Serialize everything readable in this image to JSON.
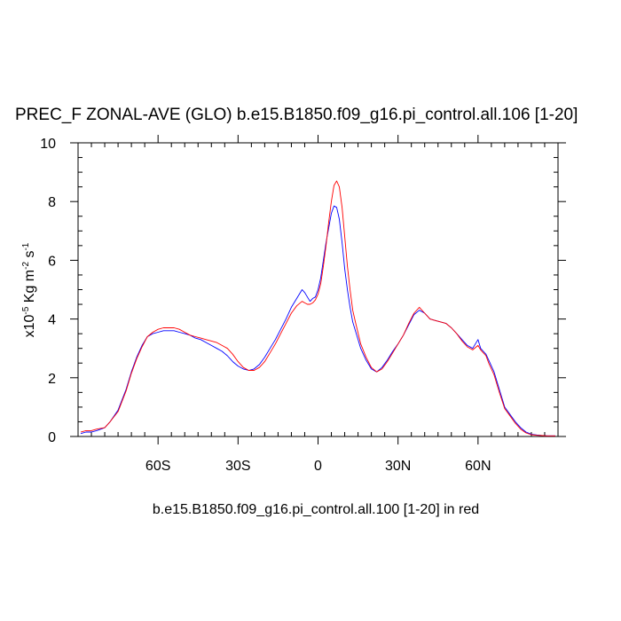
{
  "chart_data": {
    "type": "line",
    "title": "PREC_F ZONAL-AVE (GLO) b.e15.B1850.f09_g16.pi_control.all.106 [1-20]",
    "subtitle": "b.e15.B1850.f09_g16.pi_control.all.100 [1-20] in red",
    "ylabel_prefix": "x10",
    "ylabel_exp": "-5",
    "ylabel_unit1": " Kg m",
    "ylabel_exp2": "-2",
    "ylabel_unit2": " s",
    "ylabel_exp3": "-1",
    "xlim": [
      -90,
      90
    ],
    "ylim": [
      0,
      10
    ],
    "xticks": [
      {
        "value": -60,
        "label": "60S"
      },
      {
        "value": -30,
        "label": "30S"
      },
      {
        "value": 0,
        "label": "0"
      },
      {
        "value": 30,
        "label": "30N"
      },
      {
        "value": 60,
        "label": "60N"
      }
    ],
    "yticks": [
      {
        "value": 0,
        "label": "0"
      },
      {
        "value": 2,
        "label": "2"
      },
      {
        "value": 4,
        "label": "4"
      },
      {
        "value": 6,
        "label": "6"
      },
      {
        "value": 8,
        "label": "8"
      },
      {
        "value": 10,
        "label": "10"
      }
    ],
    "series": [
      {
        "name": "b.e15.B1850.f09_g16.pi_control.all.106 [1-20]",
        "color": "#0000ff",
        "x": [
          -89,
          -87,
          -85,
          -83,
          -80,
          -78,
          -75,
          -72,
          -70,
          -68,
          -66,
          -64,
          -62,
          -60,
          -58,
          -56,
          -54,
          -52,
          -50,
          -48,
          -46,
          -44,
          -42,
          -40,
          -38,
          -36,
          -34,
          -32,
          -30,
          -28,
          -26,
          -24,
          -22,
          -20,
          -18,
          -16,
          -14,
          -12,
          -10,
          -8,
          -6,
          -5,
          -4,
          -3,
          -2,
          -1,
          0,
          1,
          2,
          3,
          4,
          5,
          6,
          7,
          8,
          9,
          10,
          11,
          12,
          13,
          14,
          16,
          18,
          20,
          22,
          24,
          26,
          28,
          30,
          32,
          34,
          36,
          38,
          40,
          42,
          44,
          46,
          48,
          50,
          52,
          54,
          56,
          58,
          60,
          61,
          62,
          63,
          64,
          66,
          68,
          70,
          72,
          74,
          76,
          78,
          80,
          82,
          84,
          86,
          88,
          89
        ],
        "values": [
          0.1,
          0.15,
          0.15,
          0.2,
          0.3,
          0.5,
          0.9,
          1.6,
          2.2,
          2.7,
          3.1,
          3.4,
          3.5,
          3.55,
          3.6,
          3.6,
          3.6,
          3.55,
          3.5,
          3.45,
          3.35,
          3.3,
          3.2,
          3.1,
          3.0,
          2.9,
          2.75,
          2.55,
          2.4,
          2.3,
          2.25,
          2.3,
          2.45,
          2.7,
          3.0,
          3.3,
          3.65,
          4.0,
          4.4,
          4.7,
          5.0,
          4.9,
          4.75,
          4.6,
          4.7,
          4.75,
          5.0,
          5.4,
          6.0,
          6.6,
          7.1,
          7.6,
          7.85,
          7.8,
          7.4,
          6.6,
          5.7,
          5.0,
          4.4,
          3.9,
          3.6,
          3.0,
          2.6,
          2.3,
          2.2,
          2.35,
          2.6,
          2.9,
          3.15,
          3.45,
          3.8,
          4.15,
          4.3,
          4.2,
          4.0,
          3.95,
          3.9,
          3.85,
          3.7,
          3.5,
          3.3,
          3.1,
          3.0,
          3.3,
          3.0,
          2.9,
          2.8,
          2.6,
          2.2,
          1.6,
          1.0,
          0.75,
          0.5,
          0.3,
          0.15,
          0.08,
          0.05,
          0.03,
          0.02,
          0.02,
          0.02
        ]
      },
      {
        "name": "b.e15.B1850.f09_g16.pi_control.all.100 [1-20]",
        "color": "#ff0000",
        "x": [
          -89,
          -87,
          -85,
          -83,
          -80,
          -78,
          -75,
          -72,
          -70,
          -68,
          -66,
          -64,
          -62,
          -60,
          -58,
          -56,
          -54,
          -52,
          -50,
          -48,
          -46,
          -44,
          -42,
          -40,
          -38,
          -36,
          -34,
          -32,
          -30,
          -28,
          -26,
          -24,
          -22,
          -20,
          -18,
          -16,
          -14,
          -12,
          -10,
          -8,
          -6,
          -5,
          -4,
          -3,
          -2,
          -1,
          0,
          1,
          2,
          3,
          4,
          5,
          6,
          7,
          8,
          9,
          10,
          11,
          12,
          13,
          14,
          16,
          18,
          20,
          22,
          24,
          26,
          28,
          30,
          32,
          34,
          36,
          38,
          40,
          42,
          44,
          46,
          48,
          50,
          52,
          54,
          56,
          58,
          60,
          61,
          62,
          63,
          64,
          66,
          68,
          70,
          72,
          74,
          76,
          78,
          80,
          82,
          84,
          86,
          88,
          89
        ],
        "values": [
          0.15,
          0.2,
          0.2,
          0.25,
          0.3,
          0.5,
          0.85,
          1.55,
          2.15,
          2.65,
          3.05,
          3.4,
          3.55,
          3.65,
          3.7,
          3.7,
          3.7,
          3.65,
          3.55,
          3.45,
          3.4,
          3.35,
          3.3,
          3.25,
          3.2,
          3.1,
          3.0,
          2.8,
          2.55,
          2.35,
          2.25,
          2.25,
          2.35,
          2.55,
          2.85,
          3.15,
          3.5,
          3.85,
          4.2,
          4.45,
          4.6,
          4.55,
          4.5,
          4.5,
          4.55,
          4.65,
          4.85,
          5.2,
          5.8,
          6.5,
          7.3,
          8.0,
          8.55,
          8.7,
          8.5,
          7.8,
          6.8,
          5.8,
          5.0,
          4.3,
          3.9,
          3.15,
          2.7,
          2.35,
          2.2,
          2.3,
          2.55,
          2.85,
          3.15,
          3.45,
          3.85,
          4.2,
          4.4,
          4.2,
          4.0,
          3.95,
          3.9,
          3.85,
          3.7,
          3.5,
          3.25,
          3.05,
          2.95,
          3.1,
          2.95,
          2.85,
          2.75,
          2.5,
          2.1,
          1.5,
          0.95,
          0.7,
          0.45,
          0.25,
          0.12,
          0.06,
          0.04,
          0.03,
          0.02,
          0.02,
          0.02
        ]
      }
    ]
  }
}
